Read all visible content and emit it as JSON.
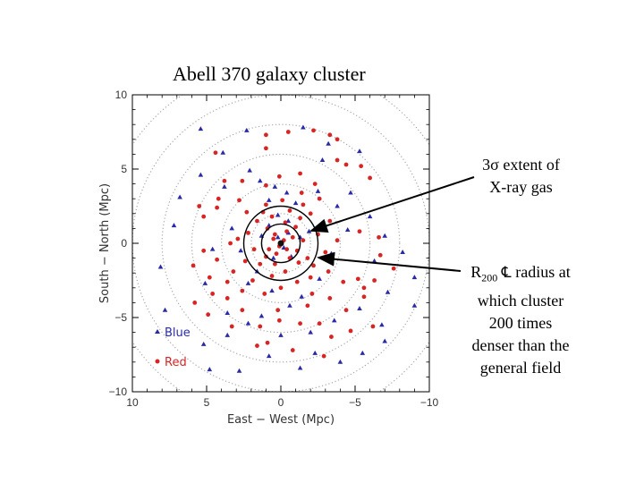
{
  "slide": {
    "title": "Abell 370 galaxy cluster"
  },
  "chart_data": {
    "type": "scatter",
    "xlabel": "East  −  West  (Mpc)",
    "ylabel": "South  −  North  (Mpc)",
    "xlim": [
      10,
      -10
    ],
    "ylim": [
      -10,
      10
    ],
    "x_ticks": [
      {
        "value": 10,
        "label": "10"
      },
      {
        "value": 5,
        "label": "5"
      },
      {
        "value": 0,
        "label": "0"
      },
      {
        "value": -5,
        "label": "−5"
      },
      {
        "value": -10,
        "label": "−10"
      }
    ],
    "y_ticks": [
      {
        "value": 10,
        "label": "10"
      },
      {
        "value": 5,
        "label": "5"
      },
      {
        "value": 0,
        "label": "0"
      },
      {
        "value": -5,
        "label": "−5"
      },
      {
        "value": -10,
        "label": "−10"
      }
    ],
    "dotted_circle_radii_mpc": [
      2,
      4,
      6,
      8,
      10,
      12
    ],
    "marked_circles_mpc": [
      {
        "name": "r200-circle",
        "radius": 2.5
      },
      {
        "name": "xray-3sigma-circle",
        "radius": 1.3
      }
    ],
    "legend": {
      "position": "bottom-left",
      "entries": [
        {
          "label": "Blue",
          "color": "#2a2aa8",
          "marker": "triangle"
        },
        {
          "label": "Red",
          "color": "#d92424",
          "marker": "circle"
        }
      ]
    },
    "series": [
      {
        "name": "Blue",
        "color": "#2a2aa8",
        "marker": "triangle",
        "points": [
          [
            5.4,
            7.7
          ],
          [
            2.3,
            7.6
          ],
          [
            -1.5,
            7.8
          ],
          [
            -3.2,
            6.7
          ],
          [
            -5.3,
            6.2
          ],
          [
            -6.0,
            1.8
          ],
          [
            -7.0,
            0.5
          ],
          [
            -8.2,
            -0.6
          ],
          [
            -9.0,
            -2.3
          ],
          [
            -9.0,
            -4.2
          ],
          [
            -7.2,
            -3.3
          ],
          [
            -5.3,
            -4.4
          ],
          [
            -6.8,
            -5.5
          ],
          [
            -7.0,
            -6.6
          ],
          [
            -5.5,
            -7.4
          ],
          [
            -4.0,
            -8.0
          ],
          [
            -2.3,
            -7.4
          ],
          [
            0.0,
            -6.2
          ],
          [
            2.2,
            -5.4
          ],
          [
            3.6,
            -6.2
          ],
          [
            5.2,
            -6.8
          ],
          [
            4.8,
            -8.5
          ],
          [
            2.8,
            -8.6
          ],
          [
            0.8,
            -7.6
          ],
          [
            -1.3,
            -8.4
          ],
          [
            7.8,
            -4.5
          ],
          [
            8.1,
            -1.6
          ],
          [
            7.2,
            1.2
          ],
          [
            6.8,
            3.1
          ],
          [
            5.4,
            4.6
          ],
          [
            3.8,
            3.8
          ],
          [
            2.1,
            4.9
          ],
          [
            0.8,
            2.9
          ],
          [
            -0.4,
            3.4
          ],
          [
            -1.0,
            2.7
          ],
          [
            -2.5,
            3.5
          ],
          [
            -3.8,
            2.5
          ],
          [
            -4.5,
            0.9
          ],
          [
            -3.4,
            -0.7
          ],
          [
            -2.6,
            -2.4
          ],
          [
            -1.4,
            -3.6
          ],
          [
            0.6,
            -3.2
          ],
          [
            1.6,
            -1.9
          ],
          [
            2.7,
            -0.5
          ],
          [
            3.3,
            1.0
          ],
          [
            4.6,
            -0.4
          ],
          [
            5.1,
            -2.7
          ],
          [
            3.6,
            -4.7
          ],
          [
            1.3,
            -4.9
          ],
          [
            -0.6,
            -4.2
          ],
          [
            -3.6,
            -5.2
          ],
          [
            -2.0,
            -6.0
          ],
          [
            0.2,
            1.9
          ],
          [
            -0.5,
            1.5
          ],
          [
            0.8,
            1.2
          ],
          [
            1.3,
            0.5
          ],
          [
            -1.3,
            0.4
          ],
          [
            -0.7,
            -0.9
          ],
          [
            0.5,
            -1.0
          ],
          [
            -0.2,
            -0.3
          ],
          [
            0.2,
            0.4
          ],
          [
            -0.5,
            0.7
          ],
          [
            0.4,
            3.8
          ],
          [
            1.4,
            4.2
          ],
          [
            -2.8,
            5.6
          ],
          [
            3.9,
            6.1
          ],
          [
            -1.9,
            0.8
          ],
          [
            2.2,
            -2.7
          ],
          [
            -4.7,
            3.4
          ],
          [
            -6.3,
            -1.2
          ]
        ]
      },
      {
        "name": "Red",
        "color": "#d92424",
        "marker": "circle",
        "points": [
          [
            1.0,
            7.3
          ],
          [
            -0.5,
            7.5
          ],
          [
            -2.2,
            7.6
          ],
          [
            -3.3,
            7.3
          ],
          [
            -3.8,
            7.0
          ],
          [
            1.0,
            6.4
          ],
          [
            4.4,
            6.1
          ],
          [
            -3.8,
            5.6
          ],
          [
            -4.4,
            5.3
          ],
          [
            -5.4,
            5.2
          ],
          [
            -6.0,
            4.4
          ],
          [
            3.8,
            4.2
          ],
          [
            2.6,
            4.2
          ],
          [
            -2.3,
            4.0
          ],
          [
            -1.3,
            4.7
          ],
          [
            0.1,
            4.5
          ],
          [
            1.0,
            3.9
          ],
          [
            -1.4,
            3.4
          ],
          [
            5.5,
            2.5
          ],
          [
            5.2,
            1.8
          ],
          [
            4.3,
            2.4
          ],
          [
            4.2,
            3.0
          ],
          [
            2.3,
            2.1
          ],
          [
            1.0,
            2.6
          ],
          [
            -0.1,
            2.9
          ],
          [
            -0.6,
            2.2
          ],
          [
            -1.3,
            1.7
          ],
          [
            -2.0,
            2.0
          ],
          [
            -3.3,
            1.5
          ],
          [
            -3.8,
            0.2
          ],
          [
            -5.3,
            0.8
          ],
          [
            -6.6,
            0.4
          ],
          [
            -6.7,
            -0.8
          ],
          [
            -7.6,
            -1.7
          ],
          [
            -6.3,
            -2.5
          ],
          [
            -5.2,
            -2.4
          ],
          [
            -4.2,
            -2.6
          ],
          [
            -5.6,
            -3.0
          ],
          [
            -3.2,
            -1.9
          ],
          [
            -2.2,
            -1.5
          ],
          [
            -1.2,
            -1.3
          ],
          [
            -0.3,
            -1.9
          ],
          [
            0.6,
            -2.2
          ],
          [
            1.4,
            -1.4
          ],
          [
            2.4,
            -1.2
          ],
          [
            3.2,
            -1.9
          ],
          [
            4.3,
            -1.1
          ],
          [
            5.2,
            -0.5
          ],
          [
            5.9,
            -1.5
          ],
          [
            4.8,
            -2.3
          ],
          [
            3.6,
            -2.6
          ],
          [
            2.6,
            -3.2
          ],
          [
            1.1,
            -3.4
          ],
          [
            0.0,
            -3.0
          ],
          [
            -1.1,
            -2.6
          ],
          [
            -2.1,
            -3.4
          ],
          [
            -3.3,
            -3.7
          ],
          [
            -4.4,
            -4.5
          ],
          [
            -5.6,
            -3.6
          ],
          [
            -6.2,
            -5.6
          ],
          [
            -4.7,
            -5.9
          ],
          [
            -3.4,
            -6.3
          ],
          [
            -2.6,
            -5.4
          ],
          [
            -1.3,
            -5.4
          ],
          [
            0.1,
            -5.2
          ],
          [
            1.4,
            -5.6
          ],
          [
            2.6,
            -4.5
          ],
          [
            3.6,
            -3.7
          ],
          [
            4.6,
            -3.4
          ],
          [
            5.8,
            -4.0
          ],
          [
            4.9,
            -4.8
          ],
          [
            3.3,
            -5.6
          ],
          [
            0.9,
            -6.7
          ],
          [
            -0.8,
            -7.2
          ],
          [
            -2.9,
            -7.6
          ],
          [
            1.6,
            -6.9
          ],
          [
            0.2,
            -4.5
          ],
          [
            -1.8,
            -4.2
          ],
          [
            2.2,
            0.7
          ],
          [
            1.6,
            1.5
          ],
          [
            0.9,
            1.0
          ],
          [
            0.4,
            0.6
          ],
          [
            -0.4,
            0.8
          ],
          [
            -1.0,
            1.1
          ],
          [
            -1.5,
            0.2
          ],
          [
            -1.1,
            -0.5
          ],
          [
            -0.6,
            -1.0
          ],
          [
            0.3,
            -0.7
          ],
          [
            0.8,
            -0.4
          ],
          [
            -0.2,
            0.2
          ],
          [
            0.1,
            -0.2
          ],
          [
            -0.4,
            -0.4
          ],
          [
            0.5,
            0.3
          ],
          [
            1.0,
            -0.9
          ],
          [
            -0.8,
            0.4
          ],
          [
            2.9,
            0.3
          ],
          [
            -2.5,
            0.6
          ],
          [
            1.8,
            -0.4
          ],
          [
            -1.8,
            -1.0
          ],
          [
            0.6,
            1.8
          ],
          [
            -0.3,
            1.4
          ],
          [
            1.2,
            2.1
          ],
          [
            -1.5,
            2.6
          ],
          [
            2.8,
            2.9
          ],
          [
            -2.6,
            3.0
          ],
          [
            3.4,
            0.0
          ],
          [
            -3.0,
            -0.6
          ],
          [
            -2.0,
            -2.3
          ],
          [
            1.9,
            -2.5
          ],
          [
            0.4,
            -1.4
          ]
        ]
      }
    ]
  },
  "annotations": {
    "xray": {
      "line1": "3σ extent of",
      "line2": "X-ray gas"
    },
    "r200": {
      "r": "R",
      "sub": "200",
      "symbol": "℄",
      "rest": " radius at",
      "line2": "which cluster",
      "line3": "200 times",
      "line4": "denser than the",
      "line5": "general field"
    }
  }
}
